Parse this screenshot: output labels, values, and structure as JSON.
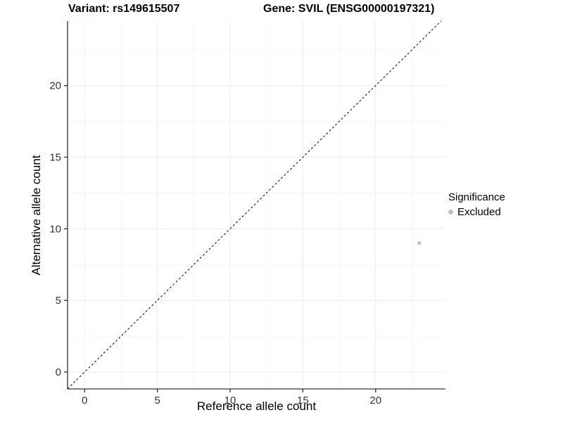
{
  "header": {
    "variant_title": "Variant: rs149615507",
    "gene_title": "Gene: SVIL (ENSG00000197321)"
  },
  "chart_data": {
    "type": "scatter",
    "title_left": "Variant: rs149615507",
    "title_right": "Gene: SVIL (ENSG00000197321)",
    "xlabel": "Reference allele count",
    "ylabel": "Alternative allele count",
    "xlim": [
      -1.17,
      24.8
    ],
    "ylim": [
      -1.18,
      24.5
    ],
    "x_ticks": [
      0,
      5,
      10,
      15,
      20
    ],
    "y_ticks": [
      0,
      5,
      10,
      15,
      20
    ],
    "minor_grid_step": 2.5,
    "grid": true,
    "identity_line": {
      "equation": "y = x",
      "style": "dashed",
      "color": "#000000"
    },
    "series": [
      {
        "name": "Excluded",
        "color": "#bdbdbd",
        "points": [
          {
            "x": 23,
            "y": 9
          }
        ]
      }
    ],
    "legend": {
      "title": "Significance",
      "position": "right",
      "entries": [
        {
          "label": "Excluded",
          "color": "#bdbdbd"
        }
      ]
    },
    "colors": {
      "major_grid": "#ebebeb",
      "minor_grid": "#f6f6f6",
      "axis_line": "#333333",
      "tick_label": "#333333",
      "point": "#bdbdbd"
    }
  }
}
